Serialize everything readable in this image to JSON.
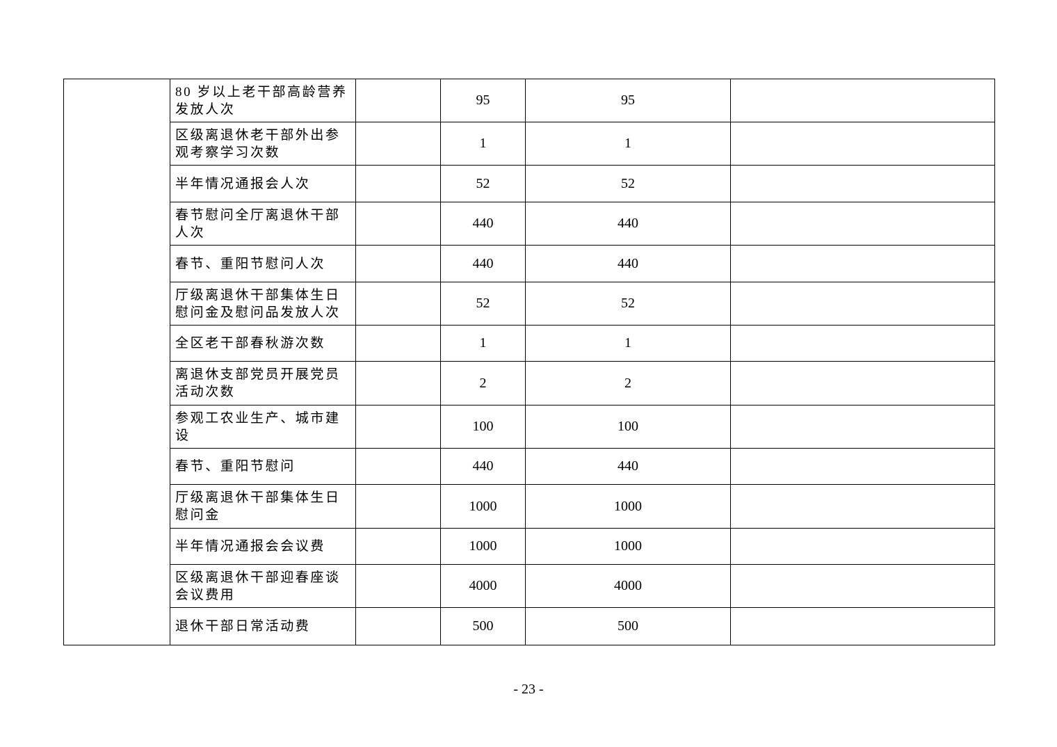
{
  "table": {
    "rows": [
      {
        "lines": [
          "80 岁以上老干部高龄营养",
          "发放人次"
        ],
        "target": "",
        "value1": "95",
        "value2": "95",
        "note": ""
      },
      {
        "lines": [
          "区级离退休老干部外出参",
          "观考察学习次数"
        ],
        "target": "",
        "value1": "1",
        "value2": "1",
        "note": ""
      },
      {
        "lines": [
          "半年情况通报会人次"
        ],
        "target": "",
        "value1": "52",
        "value2": "52",
        "note": ""
      },
      {
        "lines": [
          "春节慰问全厅离退休干部",
          "人次"
        ],
        "target": "",
        "value1": "440",
        "value2": "440",
        "note": ""
      },
      {
        "lines": [
          "春节、重阳节慰问人次"
        ],
        "target": "",
        "value1": "440",
        "value2": "440",
        "note": ""
      },
      {
        "lines": [
          "厅级离退休干部集体生日",
          "慰问金及慰问品发放人次"
        ],
        "target": "",
        "value1": "52",
        "value2": "52",
        "note": ""
      },
      {
        "lines": [
          "全区老干部春秋游次数"
        ],
        "target": "",
        "value1": "1",
        "value2": "1",
        "note": ""
      },
      {
        "lines": [
          "离退休支部党员开展党员",
          "活动次数"
        ],
        "target": "",
        "value1": "2",
        "value2": "2",
        "note": ""
      },
      {
        "lines": [
          "参观工农业生产、城市建",
          "设"
        ],
        "target": "",
        "value1": "100",
        "value2": "100",
        "note": ""
      },
      {
        "lines": [
          "春节、重阳节慰问"
        ],
        "target": "",
        "value1": "440",
        "value2": "440",
        "note": ""
      },
      {
        "lines": [
          "厅级离退休干部集体生日",
          "慰问金"
        ],
        "target": "",
        "value1": "1000",
        "value2": "1000",
        "note": ""
      },
      {
        "lines": [
          "半年情况通报会会议费"
        ],
        "target": "",
        "value1": "1000",
        "value2": "1000",
        "note": ""
      },
      {
        "lines": [
          "区级离退休干部迎春座谈",
          "会议费用"
        ],
        "target": "",
        "value1": "4000",
        "value2": "4000",
        "note": ""
      },
      {
        "lines": [
          "退休干部日常活动费"
        ],
        "target": "",
        "value1": "500",
        "value2": "500",
        "note": ""
      }
    ]
  },
  "footer": {
    "page_number": "- 23 -"
  }
}
